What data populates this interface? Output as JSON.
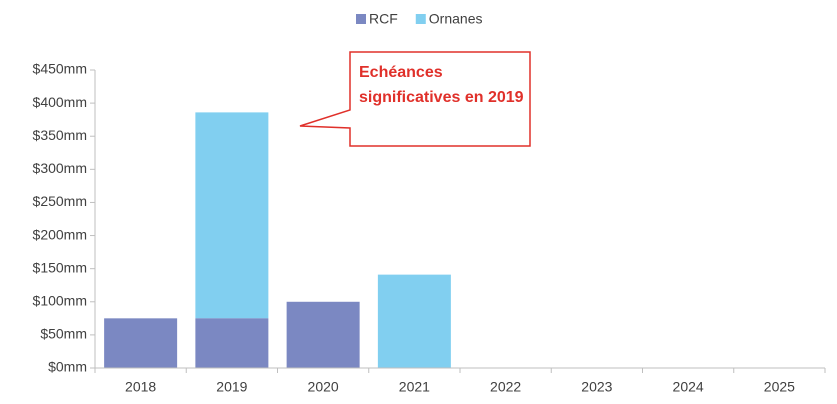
{
  "chart_data": {
    "type": "stacked_bar",
    "annotation": "Echéances significatives en 2019",
    "categories": [
      "2018",
      "2019",
      "2020",
      "2021",
      "2022",
      "2023",
      "2024",
      "2025"
    ],
    "series": [
      {
        "name": "RCF",
        "color": "#7b88c2",
        "values": [
          75,
          75,
          100,
          0,
          0,
          0,
          0,
          0
        ]
      },
      {
        "name": "Ornanes",
        "color": "#81cff0",
        "values": [
          0,
          311,
          0,
          141,
          0,
          0,
          0,
          0
        ]
      }
    ],
    "ylim": [
      0,
      450
    ],
    "yticks": [
      {
        "value": 0,
        "label": "$0mm"
      },
      {
        "value": 50,
        "label": "$50mm"
      },
      {
        "value": 100,
        "label": "$100mm"
      },
      {
        "value": 150,
        "label": "$150mm"
      },
      {
        "value": 200,
        "label": "$200mm"
      },
      {
        "value": 250,
        "label": "$250mm"
      },
      {
        "value": 300,
        "label": "$300mm"
      },
      {
        "value": 350,
        "label": "$350mm"
      },
      {
        "value": 400,
        "label": "$400mm"
      },
      {
        "value": 450,
        "label": "$450mm"
      }
    ],
    "grid": false,
    "legend": "top"
  }
}
